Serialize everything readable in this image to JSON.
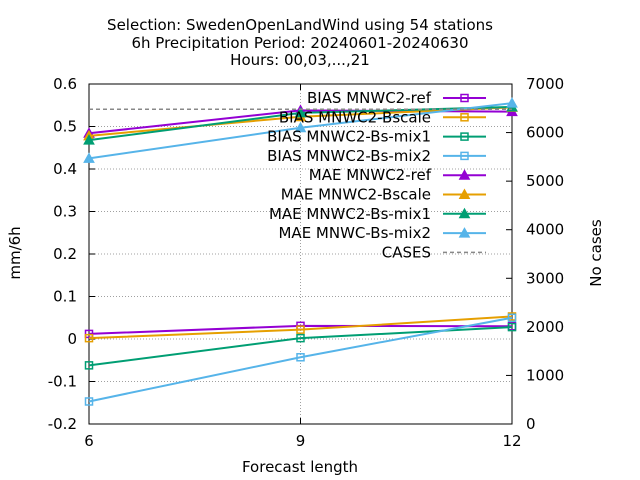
{
  "chart_data": {
    "type": "line",
    "title_lines": [
      "Selection: SwedenOpenLandWind using    54 stations",
      "6h Precipitation   Period: 20240601-20240630",
      "Hours: 00,03,...,21"
    ],
    "xlabel": "Forecast length",
    "ylabel": "mm/6h",
    "y2label": "No cases",
    "x_ticks": [
      "6",
      "9",
      "12"
    ],
    "y_ticks": [
      "-0.2",
      "-0.1",
      "0",
      "0.1",
      "0.2",
      "0.3",
      "0.4",
      "0.5",
      "0.6"
    ],
    "y2_ticks": [
      "0",
      "1000",
      "2000",
      "3000",
      "4000",
      "5000",
      "6000",
      "7000"
    ],
    "x": [
      6,
      9,
      12
    ],
    "xlim": [
      6,
      12
    ],
    "ylim": [
      -0.2,
      0.6
    ],
    "y2lim": [
      0,
      7000
    ],
    "grid": true,
    "legend_position": "top-right",
    "series": [
      {
        "name": "BIAS MNWC2-ref",
        "values": [
          0.012,
          0.031,
          0.03
        ],
        "color": "#9400d3",
        "marker": "square-open",
        "axis": "y1"
      },
      {
        "name": "BIAS MNWC2-Bscale",
        "values": [
          0.002,
          0.022,
          0.053
        ],
        "color": "#e69f00",
        "marker": "square-open",
        "axis": "y1"
      },
      {
        "name": "BIAS MNWC2-Bs-mix1",
        "values": [
          -0.062,
          0.002,
          0.028
        ],
        "color": "#009e73",
        "marker": "square-open",
        "axis": "y1"
      },
      {
        "name": "BIAS MNWC2-Bs-mix2",
        "values": [
          -0.147,
          -0.043,
          0.05
        ],
        "color": "#56b4e9",
        "marker": "square-open",
        "axis": "y1"
      },
      {
        "name": "MAE MNWC2-ref",
        "values": [
          0.484,
          0.538,
          0.535
        ],
        "color": "#9400d3",
        "marker": "triangle",
        "axis": "y1"
      },
      {
        "name": "MAE MNWC2-Bscale",
        "values": [
          0.478,
          0.523,
          0.545
        ],
        "color": "#e69f00",
        "marker": "triangle",
        "axis": "y1"
      },
      {
        "name": "MAE MNWC2-Bs-mix1",
        "values": [
          0.468,
          0.532,
          0.546
        ],
        "color": "#009e73",
        "marker": "triangle",
        "axis": "y1"
      },
      {
        "name": "MAE MNWC-Bs-mix2",
        "values": [
          0.425,
          0.497,
          0.555
        ],
        "color": "#56b4e9",
        "marker": "triangle",
        "axis": "y1"
      },
      {
        "name": "CASES",
        "values": [
          6480,
          6480,
          6480
        ],
        "color": "#888888",
        "marker": "none",
        "dash": true,
        "axis": "y2"
      }
    ]
  }
}
